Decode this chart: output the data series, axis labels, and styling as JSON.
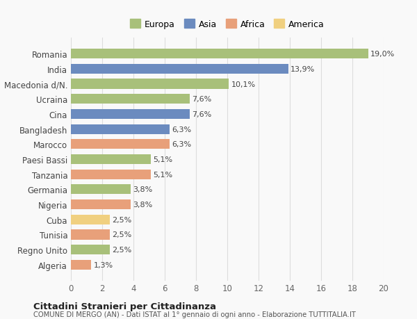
{
  "categories": [
    "Romania",
    "India",
    "Macedonia d/N.",
    "Ucraina",
    "Cina",
    "Bangladesh",
    "Marocco",
    "Paesi Bassi",
    "Tanzania",
    "Germania",
    "Nigeria",
    "Cuba",
    "Tunisia",
    "Regno Unito",
    "Algeria"
  ],
  "values": [
    19.0,
    13.9,
    10.1,
    7.6,
    7.6,
    6.3,
    6.3,
    5.1,
    5.1,
    3.8,
    3.8,
    2.5,
    2.5,
    2.5,
    1.3
  ],
  "labels": [
    "19,0%",
    "13,9%",
    "10,1%",
    "7,6%",
    "7,6%",
    "6,3%",
    "6,3%",
    "5,1%",
    "5,1%",
    "3,8%",
    "3,8%",
    "2,5%",
    "2,5%",
    "2,5%",
    "1,3%"
  ],
  "colors": [
    "#a8c07a",
    "#6b8bbf",
    "#a8c07a",
    "#a8c07a",
    "#6b8bbf",
    "#6b8bbf",
    "#e8a07a",
    "#a8c07a",
    "#e8a07a",
    "#a8c07a",
    "#e8a07a",
    "#f0d080",
    "#e8a07a",
    "#a8c07a",
    "#e8a07a"
  ],
  "continent": [
    "Europa",
    "Asia",
    "Europa",
    "Europa",
    "Asia",
    "Asia",
    "Africa",
    "Europa",
    "Africa",
    "Europa",
    "Africa",
    "America",
    "Africa",
    "Europa",
    "Africa"
  ],
  "legend_labels": [
    "Europa",
    "Asia",
    "Africa",
    "America"
  ],
  "legend_colors": [
    "#a8c07a",
    "#6b8bbf",
    "#e8a07a",
    "#f0d080"
  ],
  "title": "Cittadini Stranieri per Cittadinanza",
  "subtitle": "COMUNE DI MERGO (AN) - Dati ISTAT al 1° gennaio di ogni anno - Elaborazione TUTTITALIA.IT",
  "xlim": [
    0,
    20
  ],
  "xticks": [
    0,
    2,
    4,
    6,
    8,
    10,
    12,
    14,
    16,
    18,
    20
  ],
  "background_color": "#f9f9f9",
  "grid_color": "#dddddd",
  "bar_height": 0.65
}
